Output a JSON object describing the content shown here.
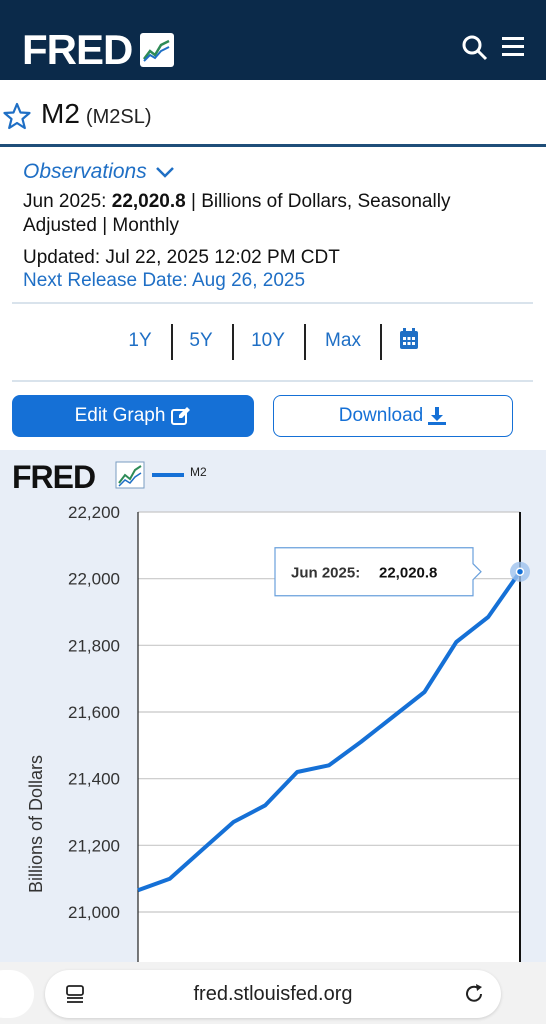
{
  "header": {
    "logo_text": "FRED",
    "icons": [
      "search-icon",
      "menu-icon"
    ]
  },
  "series": {
    "title": "M2",
    "code": "(M2SL)"
  },
  "observations": {
    "toggle_label": "Observations",
    "period": "Jun 2025:",
    "value": "22,020.8",
    "units_text": " | Billions of Dollars, Seasonally",
    "units_text2": "Adjusted | Monthly",
    "updated": "Updated: Jul 22, 2025 12:02 PM CDT",
    "next_release": "Next Release Date: Aug 26, 2025"
  },
  "ranges": [
    "1Y",
    "5Y",
    "10Y",
    "Max"
  ],
  "buttons": {
    "edit": "Edit Graph",
    "download": "Download"
  },
  "browser": {
    "url": "fred.stlouisfed.org"
  },
  "colors": {
    "navy": "#0b2a4a",
    "accent": "#1570d6",
    "link": "#1f6fc5",
    "chart_bg": "#e8eef7"
  },
  "chart_data": {
    "type": "line",
    "logo_text": "FRED",
    "legend": "M2",
    "ylabel": "Billions of Dollars",
    "ylim": [
      20850,
      22200
    ],
    "yticks": [
      "22,200",
      "22,000",
      "21,800",
      "21,600",
      "21,400",
      "21,200",
      "21,000"
    ],
    "ytick_values": [
      22200,
      22000,
      21800,
      21600,
      21400,
      21200,
      21000
    ],
    "series": [
      {
        "name": "M2",
        "values": [
          21065,
          21100,
          21185,
          21270,
          21320,
          21420,
          21440,
          21510,
          21585,
          21660,
          21810,
          21885,
          22020.8
        ]
      }
    ],
    "tooltip": {
      "label": "Jun 2025:",
      "value": "22,020.8"
    },
    "grid": true
  }
}
